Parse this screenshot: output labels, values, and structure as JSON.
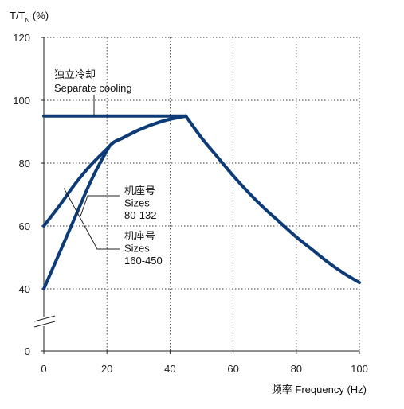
{
  "chart_data": {
    "type": "line",
    "ylabel_main": "T/T",
    "ylabel_sub": "N",
    "ylabel_unit": " (%)",
    "xlabel": "频率 Frequency (Hz)",
    "x_ticks": [
      "0",
      "20",
      "40",
      "60",
      "80",
      "100"
    ],
    "y_ticks": [
      "0",
      "40",
      "60",
      "80",
      "100",
      "120"
    ],
    "xlim": [
      0,
      100
    ],
    "ylim": [
      0,
      120
    ],
    "y_axis_break": true,
    "grid": "dotted",
    "line_color": "#0d3b78",
    "series": [
      {
        "key": "separate_cooling",
        "x": [
          0,
          45
        ],
        "y": [
          95,
          95
        ]
      },
      {
        "key": "sizes_80_132",
        "x": [
          0,
          5,
          10,
          15,
          20,
          22,
          25,
          30,
          35,
          40,
          45
        ],
        "y": [
          60,
          66.5,
          73.5,
          79.5,
          84.5,
          86.5,
          88,
          90.5,
          92.5,
          94,
          95
        ]
      },
      {
        "key": "sizes_160_450",
        "x": [
          0,
          5,
          10,
          15,
          20,
          22,
          25,
          30,
          35,
          40,
          45
        ],
        "y": [
          40,
          51.5,
          63,
          74.5,
          84,
          86.5,
          88,
          90.5,
          92.5,
          94,
          95
        ]
      },
      {
        "key": "decline",
        "x": [
          45,
          50,
          55,
          60,
          65,
          70,
          75,
          80,
          85,
          90,
          95,
          100
        ],
        "y": [
          95,
          88,
          82,
          76,
          70.5,
          65.5,
          61,
          56.5,
          52.5,
          48.5,
          45,
          42
        ]
      }
    ],
    "annotations": [
      {
        "key": "sep",
        "lines": [
          "独立冷却",
          "Separate cooling"
        ]
      },
      {
        "key": "s1",
        "lines": [
          "机座号",
          "Sizes",
          "80-132"
        ]
      },
      {
        "key": "s2",
        "lines": [
          "机座号",
          "Sizes",
          "160-450"
        ]
      }
    ]
  }
}
